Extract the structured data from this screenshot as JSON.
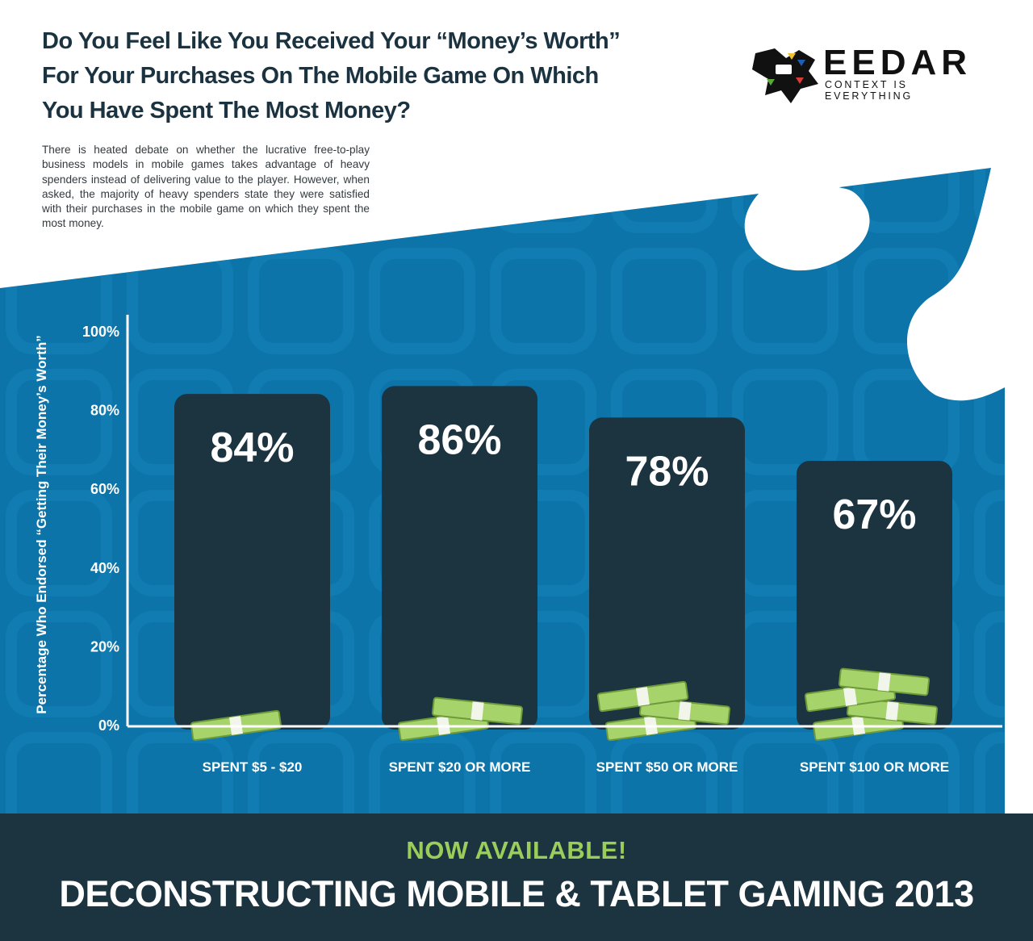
{
  "header": {
    "title_lines": [
      "Do You Feel Like You Received Your “Money’s Worth”",
      "For Your Purchases On The Mobile Game On Which",
      "You Have Spent The Most Money?"
    ],
    "intro": "There is heated debate on whether the lucrative free-to-play business models in mobile games takes advantage of heavy spenders instead of delivering value to the player. However, when asked, the majority of heavy spenders state they were satisfied with their purchases in the mobile game on which they spent the most money."
  },
  "logo": {
    "name": "EEDAR",
    "tagline": "CONTEXT IS EVERYTHING",
    "icon": "game-controller-logo-icon"
  },
  "colors": {
    "background_blue": "#0c74a8",
    "bar": "#1c3340",
    "money_green": "#a6d36a",
    "accent_green": "#9acd5a"
  },
  "chart_data": {
    "type": "bar",
    "title": "Do You Feel Like You Received Your “Money’s Worth” For Your Purchases On The Mobile Game On Which You Have Spent The Most Money?",
    "categories": [
      "SPENT $5 - $20",
      "SPENT $20 OR MORE",
      "SPENT $50 OR MORE",
      "SPENT $100 OR MORE"
    ],
    "values": [
      84,
      86,
      78,
      67
    ],
    "value_labels": [
      "84%",
      "86%",
      "78%",
      "67%"
    ],
    "ylabel": "Percentage Who Endorsed “Getting Their Money’s Worth”",
    "xlabel": "",
    "ylim": [
      0,
      100
    ],
    "yticks": [
      "0%",
      "20%",
      "40%",
      "60%",
      "80%",
      "100%"
    ],
    "grid": false,
    "legend": "none",
    "money_stack_sizes": [
      1,
      2,
      3,
      4
    ]
  },
  "banner": {
    "kicker": "NOW AVAILABLE!",
    "title": "DECONSTRUCTING MOBILE & TABLET GAMING 2013"
  }
}
